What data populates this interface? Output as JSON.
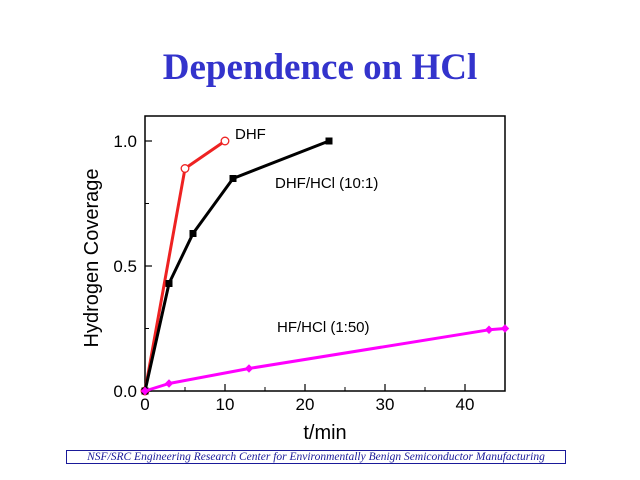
{
  "slide": {
    "title": "Dependence on HCl",
    "footer": "NSF/SRC Engineering Research Center for Environmentally Benign Semiconductor Manufacturing"
  },
  "chart_data": {
    "type": "line",
    "title": "",
    "xlabel": "t/min",
    "ylabel": "Hydrogen Coverage",
    "xlim": [
      0,
      45
    ],
    "ylim": [
      0,
      1.1
    ],
    "x_ticks": [
      "0",
      "10",
      "20",
      "30",
      "40"
    ],
    "y_ticks": [
      "0.0",
      "0.5",
      "1.0"
    ],
    "grid": false,
    "series": [
      {
        "name": "DHF",
        "color": "#ee2222",
        "marker": "open-circle",
        "points": [
          [
            0,
            0.0
          ],
          [
            5,
            0.89
          ],
          [
            10,
            1.0
          ]
        ]
      },
      {
        "name": "DHF/HCl (10:1)",
        "color": "#000000",
        "marker": "filled-square",
        "points": [
          [
            0,
            0.0
          ],
          [
            3,
            0.43
          ],
          [
            6,
            0.63
          ],
          [
            11,
            0.85
          ],
          [
            23,
            1.0
          ]
        ]
      },
      {
        "name": "HF/HCl (1:50)",
        "color": "#ff00ff",
        "marker": "filled-diamond",
        "points": [
          [
            0,
            0.0
          ],
          [
            3,
            0.03
          ],
          [
            13,
            0.09
          ],
          [
            43,
            0.245
          ],
          [
            45,
            0.25
          ]
        ]
      }
    ]
  }
}
